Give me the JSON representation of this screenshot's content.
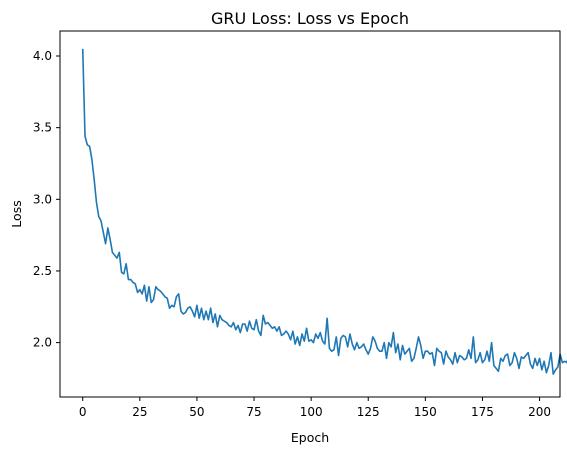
{
  "chart_data": {
    "type": "line",
    "title": "GRU Loss: Loss vs Epoch",
    "xlabel": "Epoch",
    "ylabel": "Loss",
    "xlim": [
      -9.95,
      208.95
    ],
    "ylim": [
      1.6205,
      4.1745
    ],
    "xticks": [
      0,
      25,
      50,
      75,
      100,
      125,
      150,
      175,
      200
    ],
    "yticks": [
      2.0,
      2.5,
      3.0,
      3.5,
      4.0
    ],
    "ytick_labels": [
      "2.0",
      "2.5",
      "3.0",
      "3.5",
      "4.0"
    ],
    "grid": false,
    "series": [
      {
        "color": "#1f77b4",
        "y": [
          4.05,
          3.44,
          3.38,
          3.37,
          3.28,
          3.14,
          2.98,
          2.88,
          2.85,
          2.77,
          2.69,
          2.8,
          2.72,
          2.63,
          2.61,
          2.59,
          2.63,
          2.49,
          2.48,
          2.55,
          2.44,
          2.44,
          2.42,
          2.41,
          2.35,
          2.37,
          2.34,
          2.4,
          2.29,
          2.39,
          2.28,
          2.3,
          2.39,
          2.37,
          2.36,
          2.34,
          2.32,
          2.31,
          2.24,
          2.26,
          2.25,
          2.32,
          2.34,
          2.22,
          2.2,
          2.21,
          2.24,
          2.25,
          2.22,
          2.18,
          2.26,
          2.17,
          2.24,
          2.16,
          2.22,
          2.16,
          2.24,
          2.14,
          2.2,
          2.11,
          2.19,
          2.16,
          2.15,
          2.14,
          2.12,
          2.11,
          2.14,
          2.09,
          2.12,
          2.07,
          2.13,
          2.13,
          2.08,
          2.15,
          2.1,
          2.09,
          2.16,
          2.08,
          2.05,
          2.19,
          2.13,
          2.14,
          2.12,
          2.1,
          2.11,
          2.08,
          2.11,
          2.05,
          2.06,
          2.08,
          2.06,
          2.02,
          2.08,
          1.99,
          2.04,
          1.98,
          2.06,
          2.01,
          2.1,
          2.01,
          2.02,
          2.0,
          2.06,
          2.03,
          2.07,
          2.01,
          1.99,
          2.17,
          1.96,
          1.94,
          1.95,
          2.04,
          1.91,
          2.03,
          2.05,
          2.04,
          1.97,
          2.06,
          1.99,
          1.95,
          2.0,
          1.96,
          1.97,
          1.99,
          1.95,
          1.92,
          1.96,
          2.04,
          2.01,
          1.96,
          1.94,
          1.94,
          2.0,
          1.89,
          2.0,
          1.97,
          2.07,
          1.93,
          1.99,
          1.88,
          1.98,
          1.92,
          1.94,
          1.96,
          1.87,
          1.89,
          1.96,
          2.04,
          1.98,
          1.89,
          1.94,
          1.94,
          1.92,
          1.93,
          1.84,
          1.96,
          1.94,
          1.93,
          1.85,
          1.94,
          1.9,
          1.88,
          1.85,
          1.93,
          1.86,
          1.91,
          1.9,
          1.88,
          1.89,
          1.95,
          1.89,
          2.04,
          1.86,
          1.88,
          1.93,
          1.86,
          1.88,
          1.94,
          1.87,
          2.0,
          1.84,
          1.82,
          1.8,
          1.89,
          1.87,
          1.91,
          1.92,
          1.84,
          1.86,
          1.93,
          1.89,
          1.82,
          1.9,
          1.89,
          1.91,
          1.93,
          1.85,
          1.82,
          1.89,
          1.84,
          1.89,
          1.81,
          1.87,
          1.79,
          1.84,
          1.93,
          1.78,
          1.81,
          1.83,
          1.92,
          1.86,
          1.87,
          1.86,
          1.93,
          1.86,
          1.7,
          1.85
        ]
      }
    ]
  }
}
